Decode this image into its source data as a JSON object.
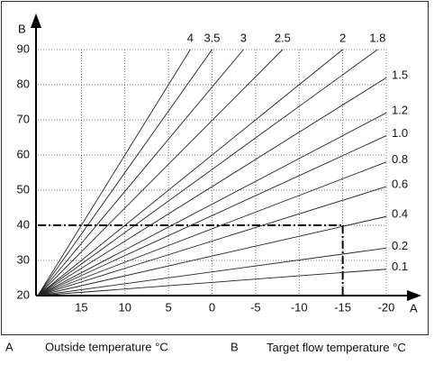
{
  "chart_data": {
    "type": "line",
    "x_axis_label": "A",
    "y_axis_label": "B",
    "xlim": [
      20,
      -20
    ],
    "ylim": [
      20,
      90
    ],
    "xticks": [
      15,
      10,
      5,
      0,
      -5,
      -10,
      -15,
      -20
    ],
    "yticks": [
      20,
      30,
      40,
      50,
      60,
      70,
      80,
      90
    ],
    "grid": true,
    "series": [
      {
        "name": "4",
        "color": "#222222",
        "x": [
          20,
          2.5
        ],
        "values": [
          20,
          90
        ]
      },
      {
        "name": "3.5",
        "color": "#222222",
        "x": [
          20,
          0
        ],
        "values": [
          20,
          90
        ]
      },
      {
        "name": "3",
        "color": "#222222",
        "x": [
          20,
          -3.6
        ],
        "values": [
          20,
          90
        ]
      },
      {
        "name": "2.5",
        "color": "#222222",
        "x": [
          20,
          -8.1
        ],
        "values": [
          20,
          90
        ]
      },
      {
        "name": "2",
        "color": "#222222",
        "x": [
          20,
          -15
        ],
        "values": [
          20,
          90
        ]
      },
      {
        "name": "1.8",
        "color": "#222222",
        "x": [
          20,
          -19
        ],
        "values": [
          20,
          90
        ]
      },
      {
        "name": "1.5",
        "color": "#222222",
        "x": [
          20,
          -20
        ],
        "values": [
          20,
          82
        ]
      },
      {
        "name": "1.2",
        "color": "#222222",
        "x": [
          20,
          -20
        ],
        "values": [
          20,
          72
        ]
      },
      {
        "name": "1.0",
        "color": "#222222",
        "x": [
          20,
          -20
        ],
        "values": [
          20,
          65.5
        ]
      },
      {
        "name": "0.8",
        "color": "#222222",
        "x": [
          20,
          -20
        ],
        "values": [
          20,
          58
        ]
      },
      {
        "name": "0.6",
        "color": "#222222",
        "x": [
          20,
          -20
        ],
        "values": [
          20,
          51
        ]
      },
      {
        "name": "0.4",
        "color": "#222222",
        "x": [
          20,
          -20
        ],
        "values": [
          20,
          42.5
        ]
      },
      {
        "name": "0.2",
        "color": "#222222",
        "x": [
          20,
          -20
        ],
        "values": [
          20,
          33.5
        ]
      },
      {
        "name": "0.1",
        "color": "#222222",
        "x": [
          20,
          -20
        ],
        "values": [
          20,
          27.5
        ]
      }
    ],
    "guide": {
      "x": -15,
      "y": 40
    },
    "legend": [
      {
        "key": "A",
        "text": "Outside temperature °C"
      },
      {
        "key": "B",
        "text": "Target flow temperature °C"
      }
    ]
  }
}
